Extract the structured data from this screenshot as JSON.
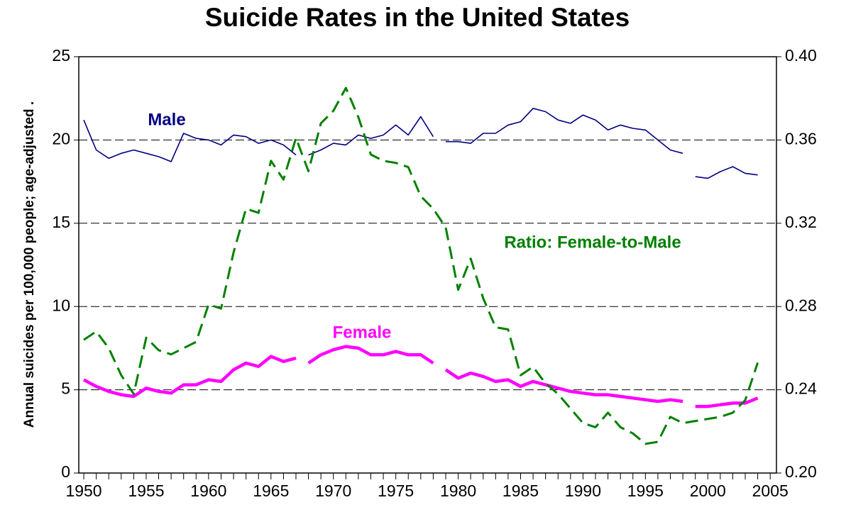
{
  "chart_data": {
    "type": "line",
    "title": "Suicide Rates in the United States",
    "y_label": "Annual suicides per 100,000 people; age-adjusted .",
    "annotations": [
      "Male",
      "Ratio: Female-to-Male",
      "Female"
    ],
    "x": [
      1950,
      1951,
      1952,
      1953,
      1954,
      1955,
      1956,
      1957,
      1958,
      1959,
      1960,
      1961,
      1962,
      1963,
      1964,
      1965,
      1966,
      1967,
      1968,
      1969,
      1970,
      1971,
      1972,
      1973,
      1974,
      1975,
      1976,
      1977,
      1978,
      1979,
      1980,
      1981,
      1982,
      1983,
      1984,
      1985,
      1986,
      1987,
      1988,
      1989,
      1990,
      1991,
      1992,
      1993,
      1994,
      1995,
      1996,
      1997,
      1998,
      1999,
      2000,
      2001,
      2002,
      2003,
      2004
    ],
    "xlim": [
      1949.6,
      2005.5
    ],
    "xticks": [
      1950,
      1955,
      1960,
      1965,
      1970,
      1975,
      1980,
      1985,
      1990,
      1995,
      2000,
      2005
    ],
    "ylim": [
      0,
      25
    ],
    "yticks": [
      0,
      5,
      10,
      15,
      20,
      25
    ],
    "y2lim": [
      0.2,
      0.4
    ],
    "y2ticks": [
      {
        "value": 0.2,
        "label": "0.20"
      },
      0.24,
      0.28,
      0.32,
      0.36,
      {
        "value": 0.4,
        "label": "0.40"
      }
    ],
    "grid": true,
    "series": [
      {
        "name": "Male",
        "color": "#000080",
        "style": "thin",
        "x": [
          1950,
          1951,
          1952,
          1953,
          1954,
          1955,
          1956,
          1957,
          1958,
          1959,
          1960,
          1961,
          1962,
          1963,
          1964,
          1965,
          1966,
          1967,
          1967.5,
          1968,
          1969,
          1970,
          1971,
          1972,
          1973,
          1974,
          1975,
          1976,
          1977,
          1978,
          1978.5,
          1979,
          1980,
          1981,
          1982,
          1983,
          1984,
          1985,
          1986,
          1987,
          1988,
          1989,
          1990,
          1991,
          1992,
          1993,
          1994,
          1995,
          1996,
          1997,
          1998,
          1998.5,
          1999,
          2000,
          2001,
          2002,
          2003,
          2004
        ],
        "values": [
          21.2,
          19.4,
          18.9,
          19.2,
          19.4,
          19.2,
          19.0,
          18.7,
          20.4,
          20.1,
          20.0,
          19.7,
          20.3,
          20.2,
          19.8,
          20.0,
          19.7,
          19.1,
          null,
          19.1,
          19.4,
          19.8,
          19.7,
          20.3,
          20.1,
          20.3,
          20.9,
          20.3,
          21.4,
          20.2,
          null,
          19.9,
          19.9,
          19.8,
          20.4,
          20.4,
          20.9,
          21.1,
          21.9,
          21.7,
          21.2,
          21.0,
          21.5,
          21.2,
          20.6,
          20.9,
          20.7,
          20.6,
          20.0,
          19.4,
          19.2,
          null,
          17.8,
          17.7,
          18.1,
          18.4,
          18.0,
          17.9
        ]
      },
      {
        "name": "Female",
        "color": "#ff00ff",
        "style": "thick",
        "x": [
          1950,
          1951,
          1952,
          1953,
          1954,
          1955,
          1956,
          1957,
          1958,
          1959,
          1960,
          1961,
          1962,
          1963,
          1964,
          1965,
          1966,
          1967,
          1967.5,
          1968,
          1969,
          1970,
          1971,
          1972,
          1973,
          1974,
          1975,
          1976,
          1977,
          1978,
          1978.5,
          1979,
          1980,
          1981,
          1982,
          1983,
          1984,
          1985,
          1986,
          1987,
          1988,
          1989,
          1990,
          1991,
          1992,
          1993,
          1994,
          1995,
          1996,
          1997,
          1998,
          1998.5,
          1999,
          2000,
          2001,
          2002,
          2003,
          2004
        ],
        "values": [
          5.6,
          5.2,
          4.9,
          4.7,
          4.6,
          5.1,
          4.9,
          4.8,
          5.3,
          5.3,
          5.6,
          5.5,
          6.2,
          6.6,
          6.4,
          7.0,
          6.7,
          6.9,
          null,
          6.6,
          7.1,
          7.4,
          7.6,
          7.5,
          7.1,
          7.1,
          7.3,
          7.1,
          7.1,
          6.6,
          null,
          6.2,
          5.7,
          6.0,
          5.8,
          5.5,
          5.6,
          5.2,
          5.5,
          5.3,
          5.1,
          4.9,
          4.8,
          4.7,
          4.7,
          4.6,
          4.5,
          4.4,
          4.3,
          4.4,
          4.3,
          null,
          4.0,
          4.0,
          4.1,
          4.2,
          4.2,
          4.5
        ]
      },
      {
        "name": "Ratio: Female-to-Male",
        "color": "#008000",
        "style": "dashed",
        "axis": "y2",
        "values": [
          0.264,
          0.268,
          0.26,
          0.247,
          0.238,
          0.265,
          0.259,
          0.257,
          0.26,
          0.263,
          0.281,
          0.279,
          0.306,
          0.327,
          0.325,
          0.35,
          0.341,
          0.361,
          0.345,
          0.368,
          0.374,
          0.385,
          0.371,
          0.353,
          0.35,
          0.349,
          0.347,
          0.333,
          0.327,
          0.318,
          0.288,
          0.303,
          0.284,
          0.27,
          0.269,
          0.247,
          0.251,
          0.243,
          0.238,
          0.231,
          0.224,
          0.222,
          0.229,
          0.222,
          0.219,
          0.214,
          0.215,
          0.227,
          0.224,
          0.225,
          0.226,
          0.227,
          0.229,
          0.235,
          0.253
        ]
      }
    ]
  }
}
